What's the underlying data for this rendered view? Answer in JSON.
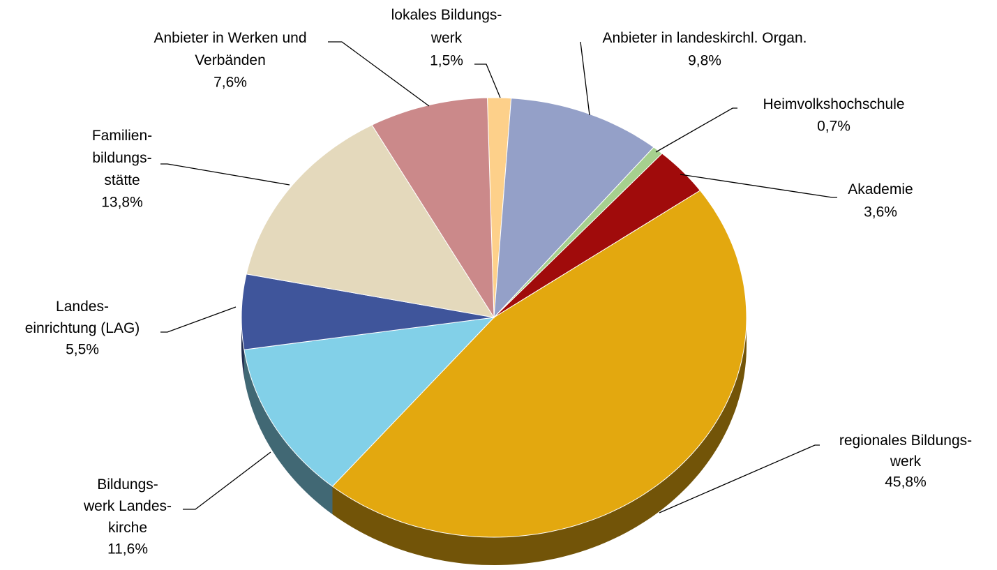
{
  "chart_data": {
    "type": "pie",
    "categories": [
      "lokales Bildungs-\nwerk",
      "Anbieter in landeskirchl. Organ.",
      "Heimvolkshochschule",
      "Akademie",
      "regionales Bildungs-\nwerk",
      "Bildungs-\nwerk Landes-\nkirche",
      "Landes-\neinrichtung (LAG)",
      "Familien-\nbildungs-\nstätte",
      "Anbieter in Werken und\nVerbänden"
    ],
    "values": [
      1.5,
      9.8,
      0.7,
      3.6,
      45.8,
      11.6,
      5.5,
      13.8,
      7.6
    ],
    "value_labels": [
      "1,5%",
      "9,8%",
      "0,7%",
      "3,6%",
      "45,8%",
      "11,6%",
      "5,5%",
      "13,8%",
      "7,6%"
    ],
    "colors": [
      "#fdd08a",
      "#94a0c8",
      "#a6d08e",
      "#a00b0b",
      "#e3a80f",
      "#82d0e8",
      "#3f559b",
      "#e4d9bc",
      "#cb898a"
    ]
  }
}
